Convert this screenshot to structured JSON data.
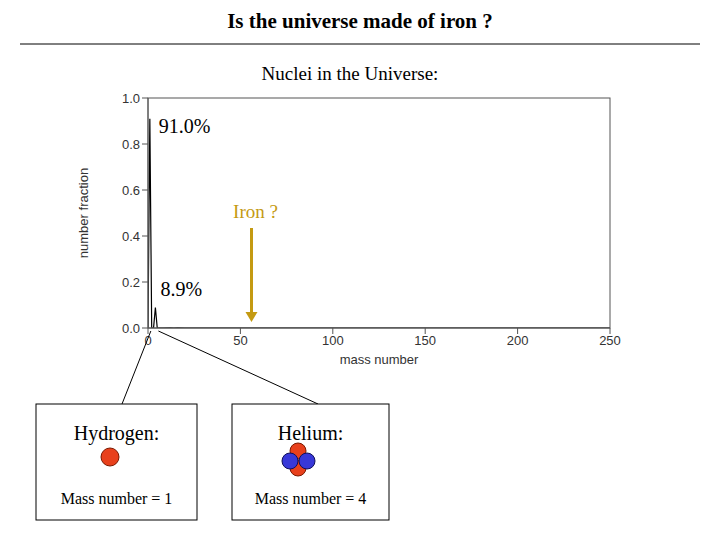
{
  "chart_data": {
    "type": "line",
    "title": "Is the universe made of iron ?",
    "subtitle": "Nuclei in the Universe:",
    "x_label": "mass number",
    "y_label": "number fraction",
    "x": [
      0,
      1,
      2,
      3,
      4,
      5,
      8,
      12,
      14,
      16,
      20,
      28,
      56,
      100,
      150,
      200,
      250
    ],
    "values": [
      0,
      0.91,
      0,
      0,
      0.089,
      0,
      0,
      0.0003,
      0.0001,
      0.0006,
      0.0001,
      4e-05,
      3e-05,
      0,
      0,
      0,
      0
    ],
    "color": "#000000",
    "xlim": [
      0,
      250
    ],
    "ylim": [
      0,
      1
    ],
    "xticks": [
      0,
      50,
      100,
      150,
      200,
      250
    ],
    "yticks": [
      {
        "value": 0,
        "label": "0.0"
      },
      0.2,
      0.4,
      0.6,
      0.8,
      {
        "value": 1,
        "label": "1.0"
      }
    ],
    "grid": false,
    "annotations": [
      {
        "text": "91.0%",
        "x": 1,
        "y": 0.91
      },
      {
        "text": "8.9%",
        "x": 4,
        "y": 0.089
      },
      {
        "text": "Iron ?",
        "x": 56
      }
    ],
    "boxes": [
      {
        "title": "Hydrogen:",
        "label": "Mass number = 1"
      },
      {
        "title": "Helium:",
        "label": "Mass number = 4"
      }
    ]
  }
}
